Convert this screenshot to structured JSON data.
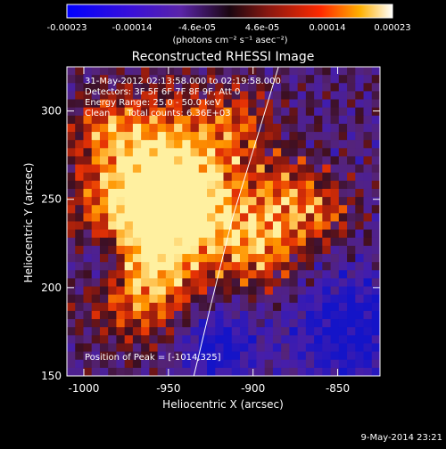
{
  "colorbar": {
    "ticks": [
      "-0.00023",
      "-0.00014",
      "-4.6e-05",
      "4.6e-05",
      "0.00014",
      "0.00023"
    ],
    "unit_label": "(photons cm⁻² s⁻¹ asec⁻²)"
  },
  "info_lines": [
    "31-May-2012 02:13:58.000 to 02:19:58.000",
    "Detectors: 3F 5F 6F 7F 8F 9F, Att 0",
    "Energy Range: 25.0 - 50.0 keV",
    "Clean      Total counts: 6.36E+03"
  ],
  "peak_text": "Position of Peak = [-1014,325]",
  "timestamp": "9-May-2014 23:21",
  "colors": {
    "background": "#000000",
    "limb_line": "#ffffff"
  },
  "chart_data": {
    "type": "heatmap",
    "title": "Reconstructed RHESSI Image",
    "xlabel": "Heliocentric X (arcsec)",
    "ylabel": "Heliocentric Y (arcsec)",
    "xlim": [
      -1010,
      -825
    ],
    "ylim": [
      150,
      325
    ],
    "xticks": [
      -1000,
      -950,
      -900,
      -850
    ],
    "yticks": [
      150,
      200,
      250,
      300
    ],
    "colorbar_range": [
      -0.00023,
      0.00023
    ],
    "grid": false,
    "limb_curve": [
      [
        -935,
        150
      ],
      [
        -925,
        190
      ],
      [
        -912,
        240
      ],
      [
        -896,
        290
      ],
      [
        -885,
        325
      ]
    ]
  }
}
